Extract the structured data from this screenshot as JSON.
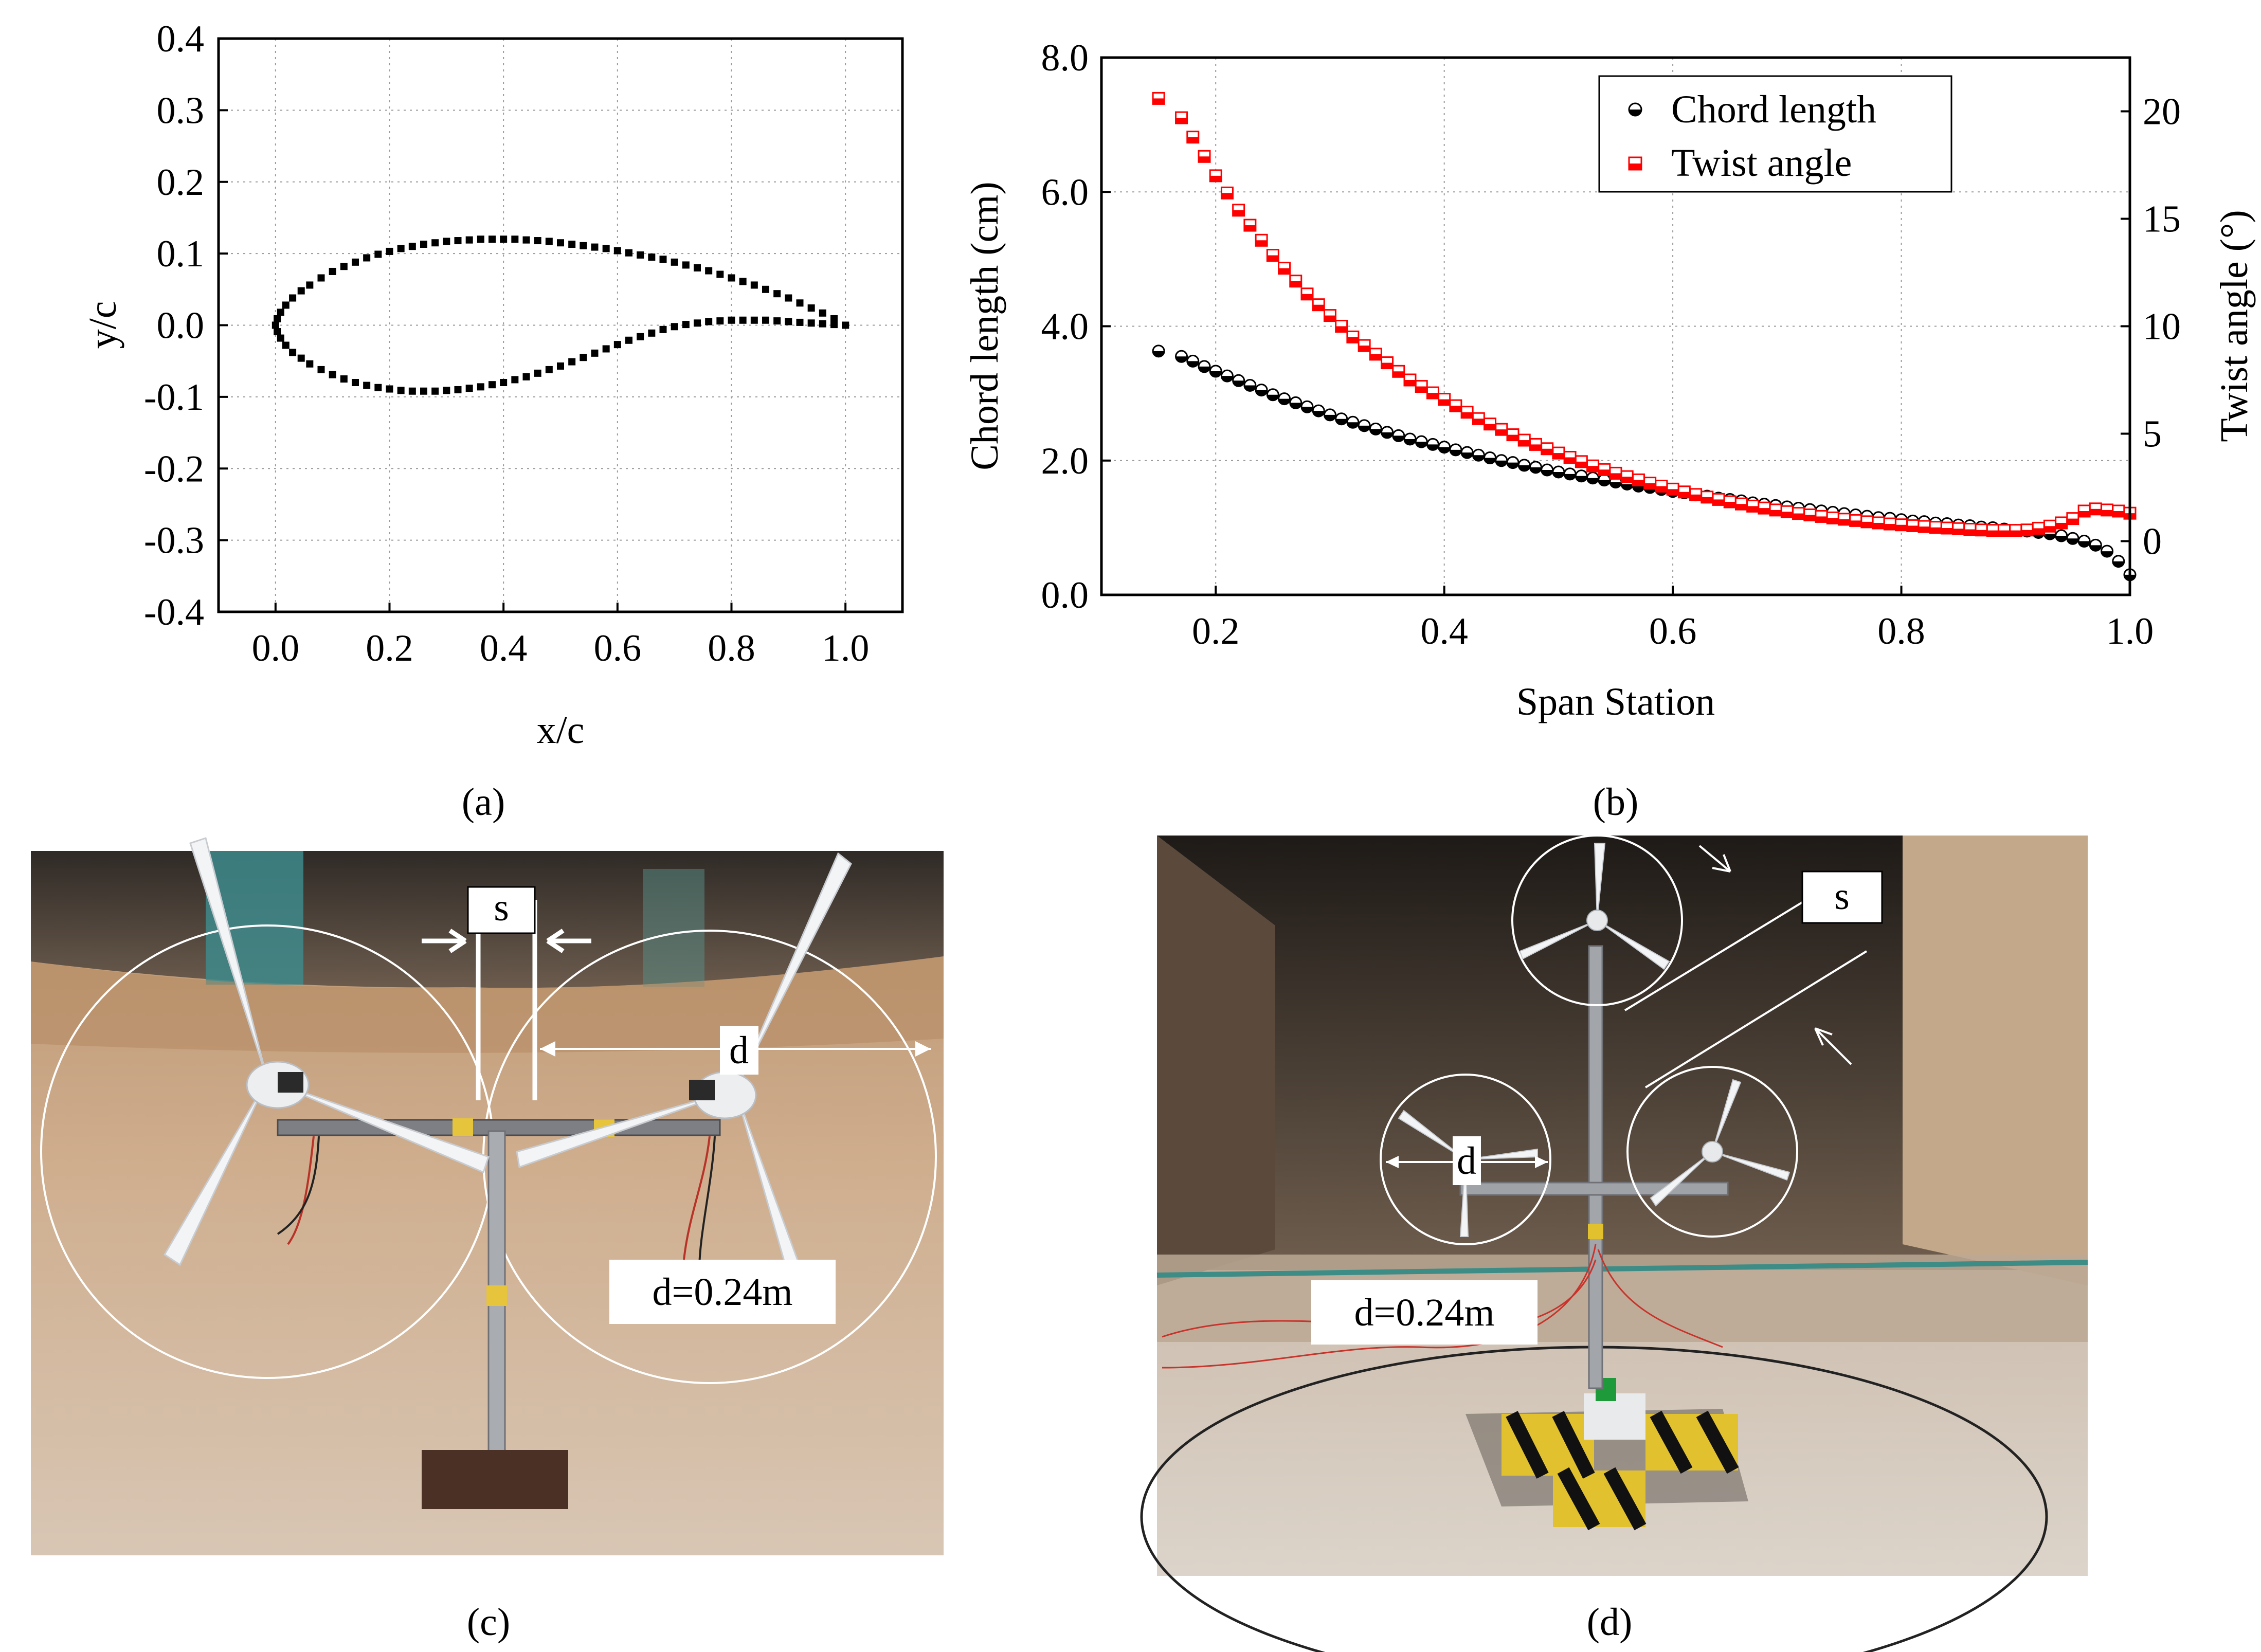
{
  "panels": {
    "a": "(a)",
    "b": "(b)",
    "c": "(c)",
    "d": "(d)"
  },
  "chart_data": [
    {
      "type": "scatter",
      "panel": "a",
      "xlabel": "x/c",
      "ylabel": "y/c",
      "xlim": [
        -0.1,
        1.1
      ],
      "ylim": [
        -0.4,
        0.4
      ],
      "xticks": [
        0.0,
        0.2,
        0.4,
        0.6,
        0.8,
        1.0
      ],
      "yticks": [
        -0.4,
        -0.3,
        -0.2,
        -0.1,
        0.0,
        0.1,
        0.2,
        0.3,
        0.4
      ],
      "grid": true,
      "series": [
        {
          "marker": "square",
          "color": "#000000",
          "x": [
            1.0,
            0.98,
            0.96,
            0.94,
            0.92,
            0.9,
            0.88,
            0.86,
            0.84,
            0.82,
            0.8,
            0.78,
            0.76,
            0.74,
            0.72,
            0.7,
            0.68,
            0.66,
            0.64,
            0.62,
            0.6,
            0.58,
            0.56,
            0.54,
            0.52,
            0.5,
            0.48,
            0.46,
            0.44,
            0.42,
            0.4,
            0.38,
            0.36,
            0.34,
            0.32,
            0.3,
            0.28,
            0.26,
            0.24,
            0.22,
            0.2,
            0.18,
            0.16,
            0.14,
            0.12,
            0.1,
            0.08,
            0.06,
            0.045,
            0.03,
            0.018,
            0.009,
            0.003,
            0.0,
            0.003,
            0.009,
            0.018,
            0.03,
            0.045,
            0.06,
            0.08,
            0.1,
            0.12,
            0.14,
            0.16,
            0.18,
            0.2,
            0.22,
            0.24,
            0.26,
            0.28,
            0.3,
            0.32,
            0.34,
            0.36,
            0.38,
            0.4,
            0.42,
            0.44,
            0.46,
            0.48,
            0.5,
            0.52,
            0.54,
            0.56,
            0.58,
            0.6,
            0.62,
            0.64,
            0.66,
            0.68,
            0.7,
            0.72,
            0.74,
            0.76,
            0.78,
            0.8,
            0.82,
            0.84,
            0.86,
            0.88,
            0.9,
            0.92,
            0.94,
            0.96,
            0.98,
            1.0
          ],
          "y": [
            0.0,
            0.009,
            0.017,
            0.024,
            0.031,
            0.038,
            0.044,
            0.05,
            0.056,
            0.061,
            0.066,
            0.071,
            0.076,
            0.08,
            0.084,
            0.088,
            0.092,
            0.095,
            0.098,
            0.101,
            0.104,
            0.107,
            0.109,
            0.111,
            0.113,
            0.115,
            0.117,
            0.118,
            0.119,
            0.12,
            0.12,
            0.12,
            0.12,
            0.119,
            0.118,
            0.117,
            0.115,
            0.113,
            0.11,
            0.107,
            0.103,
            0.099,
            0.094,
            0.088,
            0.082,
            0.075,
            0.066,
            0.056,
            0.048,
            0.038,
            0.028,
            0.018,
            0.009,
            0.0,
            -0.009,
            -0.018,
            -0.028,
            -0.038,
            -0.046,
            -0.054,
            -0.062,
            -0.069,
            -0.075,
            -0.08,
            -0.084,
            -0.087,
            -0.089,
            -0.091,
            -0.092,
            -0.092,
            -0.092,
            -0.091,
            -0.09,
            -0.088,
            -0.086,
            -0.083,
            -0.08,
            -0.076,
            -0.072,
            -0.067,
            -0.062,
            -0.057,
            -0.051,
            -0.045,
            -0.039,
            -0.033,
            -0.027,
            -0.021,
            -0.016,
            -0.011,
            -0.006,
            -0.002,
            0.001,
            0.003,
            0.005,
            0.006,
            0.007,
            0.007,
            0.007,
            0.007,
            0.006,
            0.005,
            0.004,
            0.003,
            0.002,
            0.001,
            0.0
          ]
        }
      ]
    },
    {
      "type": "scatter",
      "panel": "b",
      "xlabel": "Span Station",
      "ylabel": "Chord length (cm)",
      "ylabel_right": "Twist angle (°)",
      "xlim": [
        0.1,
        1.0
      ],
      "ylim": [
        0.0,
        8.0
      ],
      "ylim_right": [
        -2.5,
        22.5
      ],
      "xticks": [
        "0.2",
        "0.4",
        "0.6",
        "0.8",
        "1.0"
      ],
      "yticks": [
        "0.0",
        "2.0",
        "4.0",
        "6.0",
        "8.0"
      ],
      "yticks_right": [
        "0",
        "5",
        "10",
        "15",
        "20"
      ],
      "grid": true,
      "legend_position": "top-right",
      "series": [
        {
          "name": "Chord length",
          "axis": "left",
          "marker": "circle",
          "color": "#000000",
          "x": [
            0.15,
            0.17,
            0.18,
            0.19,
            0.2,
            0.21,
            0.22,
            0.23,
            0.24,
            0.25,
            0.26,
            0.27,
            0.28,
            0.29,
            0.3,
            0.31,
            0.32,
            0.33,
            0.34,
            0.35,
            0.36,
            0.37,
            0.38,
            0.39,
            0.4,
            0.41,
            0.42,
            0.43,
            0.44,
            0.45,
            0.46,
            0.47,
            0.48,
            0.49,
            0.5,
            0.51,
            0.52,
            0.53,
            0.54,
            0.55,
            0.56,
            0.57,
            0.58,
            0.59,
            0.6,
            0.61,
            0.62,
            0.63,
            0.64,
            0.65,
            0.66,
            0.67,
            0.68,
            0.69,
            0.7,
            0.71,
            0.72,
            0.73,
            0.74,
            0.75,
            0.76,
            0.77,
            0.78,
            0.79,
            0.8,
            0.81,
            0.82,
            0.83,
            0.84,
            0.85,
            0.86,
            0.87,
            0.88,
            0.89,
            0.9,
            0.91,
            0.92,
            0.93,
            0.94,
            0.95,
            0.96,
            0.97,
            0.98,
            0.99,
            1.0
          ],
          "y": [
            3.63,
            3.55,
            3.48,
            3.4,
            3.33,
            3.26,
            3.19,
            3.12,
            3.05,
            2.98,
            2.92,
            2.86,
            2.8,
            2.74,
            2.68,
            2.62,
            2.57,
            2.52,
            2.47,
            2.42,
            2.37,
            2.32,
            2.28,
            2.24,
            2.2,
            2.16,
            2.12,
            2.08,
            2.04,
            2.0,
            1.97,
            1.93,
            1.9,
            1.86,
            1.83,
            1.8,
            1.77,
            1.74,
            1.71,
            1.68,
            1.65,
            1.62,
            1.6,
            1.57,
            1.54,
            1.52,
            1.49,
            1.47,
            1.44,
            1.42,
            1.4,
            1.37,
            1.35,
            1.33,
            1.31,
            1.29,
            1.27,
            1.25,
            1.23,
            1.21,
            1.19,
            1.17,
            1.15,
            1.14,
            1.12,
            1.1,
            1.09,
            1.07,
            1.06,
            1.04,
            1.03,
            1.01,
            1.0,
            0.98,
            0.96,
            0.95,
            0.93,
            0.91,
            0.88,
            0.84,
            0.8,
            0.74,
            0.65,
            0.5,
            0.3
          ]
        },
        {
          "name": "Twist angle",
          "axis": "right",
          "marker": "square",
          "color": "#ff0000",
          "x": [
            0.15,
            0.17,
            0.18,
            0.19,
            0.2,
            0.21,
            0.22,
            0.23,
            0.24,
            0.25,
            0.26,
            0.27,
            0.28,
            0.29,
            0.3,
            0.31,
            0.32,
            0.33,
            0.34,
            0.35,
            0.36,
            0.37,
            0.38,
            0.39,
            0.4,
            0.41,
            0.42,
            0.43,
            0.44,
            0.45,
            0.46,
            0.47,
            0.48,
            0.49,
            0.5,
            0.51,
            0.52,
            0.53,
            0.54,
            0.55,
            0.56,
            0.57,
            0.58,
            0.59,
            0.6,
            0.61,
            0.62,
            0.63,
            0.64,
            0.65,
            0.66,
            0.67,
            0.68,
            0.69,
            0.7,
            0.71,
            0.72,
            0.73,
            0.74,
            0.75,
            0.76,
            0.77,
            0.78,
            0.79,
            0.8,
            0.81,
            0.82,
            0.83,
            0.84,
            0.85,
            0.86,
            0.87,
            0.88,
            0.89,
            0.9,
            0.91,
            0.92,
            0.93,
            0.94,
            0.95,
            0.96,
            0.97,
            0.98,
            0.99,
            1.0
          ],
          "y": [
            20.6,
            19.7,
            18.8,
            17.9,
            17.0,
            16.2,
            15.4,
            14.7,
            14.0,
            13.3,
            12.7,
            12.1,
            11.5,
            11.0,
            10.5,
            10.0,
            9.5,
            9.1,
            8.7,
            8.3,
            7.9,
            7.5,
            7.2,
            6.9,
            6.6,
            6.3,
            6.0,
            5.7,
            5.45,
            5.2,
            4.95,
            4.7,
            4.5,
            4.3,
            4.1,
            3.9,
            3.7,
            3.5,
            3.33,
            3.16,
            3.0,
            2.85,
            2.7,
            2.56,
            2.42,
            2.29,
            2.17,
            2.05,
            1.94,
            1.83,
            1.73,
            1.63,
            1.54,
            1.45,
            1.37,
            1.29,
            1.22,
            1.15,
            1.08,
            1.02,
            0.96,
            0.9,
            0.85,
            0.8,
            0.76,
            0.72,
            0.68,
            0.64,
            0.61,
            0.58,
            0.55,
            0.52,
            0.5,
            0.5,
            0.5,
            0.52,
            0.6,
            0.7,
            0.85,
            1.05,
            1.4,
            1.5,
            1.45,
            1.4,
            1.3
          ]
        }
      ]
    }
  ],
  "photos": {
    "c": {
      "spacing_label": "s",
      "diameter_label": "d",
      "dimension_label": "d=0.24m"
    },
    "d": {
      "spacing_label": "s",
      "diameter_label": "d",
      "dimension_label": "d=0.24m"
    }
  }
}
